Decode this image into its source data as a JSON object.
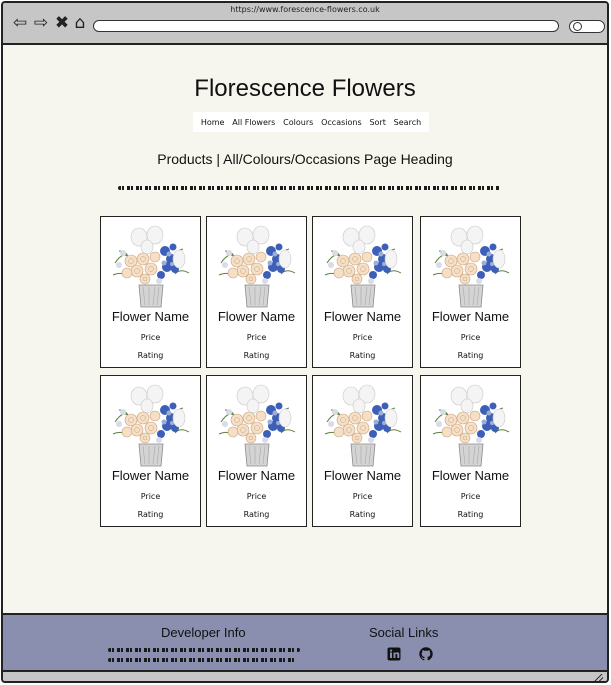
{
  "browser": {
    "url": "https://www.forescence-flowers.co.uk"
  },
  "site": {
    "title": "Florescence Flowers",
    "nav": [
      "Home",
      "All Flowers",
      "Colours",
      "Occasions",
      "Sort",
      "Search"
    ],
    "page_heading": "Products | All/Colours/Occasions Page Heading"
  },
  "products": [
    {
      "name": "Flower Name",
      "price": "Price",
      "rating": "Rating"
    },
    {
      "name": "Flower Name",
      "price": "Price",
      "rating": "Rating"
    },
    {
      "name": "Flower Name",
      "price": "Price",
      "rating": "Rating"
    },
    {
      "name": "Flower Name",
      "price": "Price",
      "rating": "Rating"
    },
    {
      "name": "Flower Name",
      "price": "Price",
      "rating": "Rating"
    },
    {
      "name": "Flower Name",
      "price": "Price",
      "rating": "Rating"
    },
    {
      "name": "Flower Name",
      "price": "Price",
      "rating": "Rating"
    },
    {
      "name": "Flower Name",
      "price": "Price",
      "rating": "Rating"
    }
  ],
  "footer": {
    "developer_heading": "Developer Info",
    "social_heading": "Social Links"
  },
  "icons": [
    "back-arrow-icon",
    "forward-arrow-icon",
    "close-icon",
    "home-icon",
    "search-icon",
    "linkedin-icon",
    "github-icon",
    "resize-grip-icon"
  ],
  "colors": {
    "page_bg": "#f7f6ee",
    "chrome": "#c6c6c6",
    "footer_bg": "#8a8fb0",
    "ink": "#111111"
  }
}
